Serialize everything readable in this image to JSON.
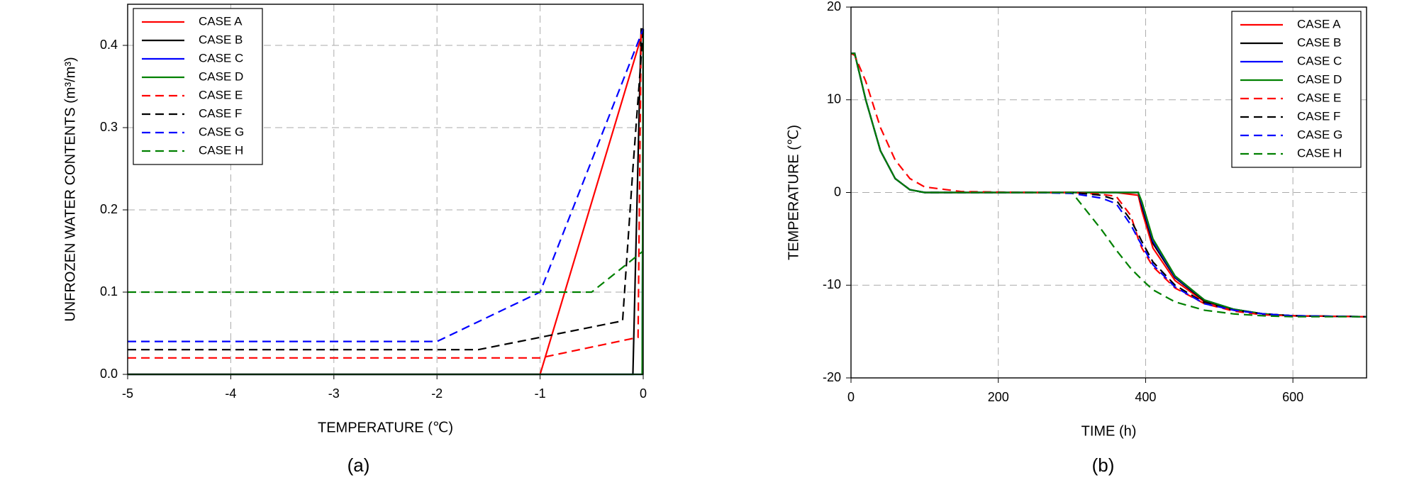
{
  "chart_data": [
    {
      "type": "line",
      "xlabel": "TEMPERATURE (℃)",
      "ylabel": "UNFROZEN WATER CONTENTS (m³/m³)",
      "caption": "(a)",
      "xlim": [
        -5,
        0
      ],
      "ylim": [
        0,
        0.45
      ],
      "xticks": [
        -5,
        -4,
        -3,
        -2,
        -1,
        0
      ],
      "yticks": [
        {
          "value": 0,
          "label": "0.0"
        },
        0.1,
        0.2,
        0.3,
        0.4
      ],
      "grid": true,
      "legend": "upper left",
      "series": [
        {
          "name": "CASE A",
          "color": "#ff0000",
          "dash": false,
          "x": [
            -5,
            -1,
            -0.02,
            0
          ],
          "values": [
            0,
            0,
            0.41,
            0.42
          ]
        },
        {
          "name": "CASE B",
          "color": "#000000",
          "dash": false,
          "x": [
            -5,
            -0.1,
            -0.02,
            0
          ],
          "values": [
            0,
            0,
            0.42,
            0.42
          ]
        },
        {
          "name": "CASE C",
          "color": "#0000ff",
          "dash": false,
          "x": [
            -5,
            -0.01,
            0
          ],
          "values": [
            0,
            0,
            0.42
          ]
        },
        {
          "name": "CASE D",
          "color": "#008000",
          "dash": false,
          "x": [
            -5,
            -0.01,
            0
          ],
          "values": [
            0,
            0,
            0.42
          ]
        },
        {
          "name": "CASE E",
          "color": "#ff0000",
          "dash": true,
          "x": [
            -5,
            -1,
            -0.05,
            -0.02
          ],
          "values": [
            0.02,
            0.02,
            0.045,
            0.42
          ]
        },
        {
          "name": "CASE F",
          "color": "#000000",
          "dash": true,
          "x": [
            -5,
            -1.6,
            -1,
            -0.2,
            -0.1,
            0
          ],
          "values": [
            0.03,
            0.03,
            0.045,
            0.065,
            0.25,
            0.42
          ]
        },
        {
          "name": "CASE G",
          "color": "#0000ff",
          "dash": true,
          "x": [
            -5,
            -2,
            -1,
            0
          ],
          "values": [
            0.04,
            0.04,
            0.1,
            0.42
          ]
        },
        {
          "name": "CASE H",
          "color": "#008000",
          "dash": true,
          "x": [
            -5,
            -0.5,
            0
          ],
          "values": [
            0.1,
            0.1,
            0.15
          ]
        }
      ]
    },
    {
      "type": "line",
      "xlabel": "TIME (h)",
      "ylabel": "TEMPERATURE (℃)",
      "caption": "(b)",
      "xlim": [
        0,
        700
      ],
      "ylim": [
        -20,
        20
      ],
      "xticks": [
        0,
        200,
        400,
        600
      ],
      "yticks": [
        -20,
        -10,
        0,
        10,
        20
      ],
      "grid": true,
      "legend": "upper right",
      "x": [
        0,
        5,
        20,
        40,
        60,
        80,
        100,
        150,
        250,
        300,
        340,
        360,
        380,
        390,
        395,
        410,
        440,
        480,
        520,
        560,
        600,
        700
      ],
      "series": [
        {
          "name": "CASE A",
          "color": "#ff0000",
          "dash": false,
          "values": [
            15,
            15,
            10,
            4.5,
            1.5,
            0.3,
            0,
            0,
            0,
            0,
            0,
            0,
            -0.2,
            -0.3,
            -2,
            -6,
            -9.5,
            -11.8,
            -12.7,
            -13.1,
            -13.3,
            -13.4
          ]
        },
        {
          "name": "CASE B",
          "color": "#000000",
          "dash": false,
          "values": [
            15,
            15,
            10,
            4.5,
            1.5,
            0.3,
            0,
            0,
            0,
            0,
            0,
            0,
            0,
            0,
            -1.5,
            -5.5,
            -9.2,
            -11.7,
            -12.6,
            -13.1,
            -13.3,
            -13.4
          ]
        },
        {
          "name": "CASE C",
          "color": "#0000ff",
          "dash": false,
          "values": [
            15,
            15,
            10,
            4.5,
            1.5,
            0.3,
            0,
            0,
            0,
            0,
            0,
            0,
            0,
            0,
            -1.2,
            -5.2,
            -9.1,
            -11.6,
            -12.6,
            -13.1,
            -13.3,
            -13.4
          ]
        },
        {
          "name": "CASE D",
          "color": "#008000",
          "dash": false,
          "values": [
            15,
            15,
            10,
            4.5,
            1.5,
            0.3,
            0,
            0,
            0,
            0,
            0,
            0,
            0,
            0,
            -1,
            -5,
            -9,
            -11.6,
            -12.6,
            -13.1,
            -13.3,
            -13.4
          ]
        },
        {
          "name": "CASE E",
          "color": "#ff0000",
          "dash": true,
          "values": [
            15,
            14.8,
            12,
            7,
            3.5,
            1.5,
            0.6,
            0.1,
            0,
            0,
            -0.2,
            -0.4,
            -2.5,
            -5,
            -6,
            -8,
            -10.3,
            -12,
            -12.8,
            -13.2,
            -13.3,
            -13.4
          ]
        },
        {
          "name": "CASE F",
          "color": "#000000",
          "dash": true,
          "values": [
            15,
            15,
            10,
            4.5,
            1.5,
            0.3,
            0,
            0,
            0,
            0,
            -0.3,
            -0.8,
            -3,
            -4.5,
            -5.3,
            -7.5,
            -10,
            -11.9,
            -12.7,
            -13.1,
            -13.3,
            -13.4
          ]
        },
        {
          "name": "CASE G",
          "color": "#0000ff",
          "dash": true,
          "values": [
            15,
            15,
            10,
            4.5,
            1.5,
            0.3,
            0,
            0,
            0,
            -0.1,
            -0.6,
            -1.2,
            -3.5,
            -5,
            -5.7,
            -7.8,
            -10.2,
            -12,
            -12.7,
            -13.1,
            -13.3,
            -13.4
          ]
        },
        {
          "name": "CASE H",
          "color": "#008000",
          "dash": true,
          "values": [
            15,
            15,
            10,
            4.5,
            1.5,
            0.3,
            0,
            0,
            0,
            0,
            -4,
            -6.2,
            -8.2,
            -9,
            -9.4,
            -10.5,
            -11.8,
            -12.7,
            -13.1,
            -13.3,
            -13.4,
            -13.4
          ]
        }
      ]
    }
  ]
}
